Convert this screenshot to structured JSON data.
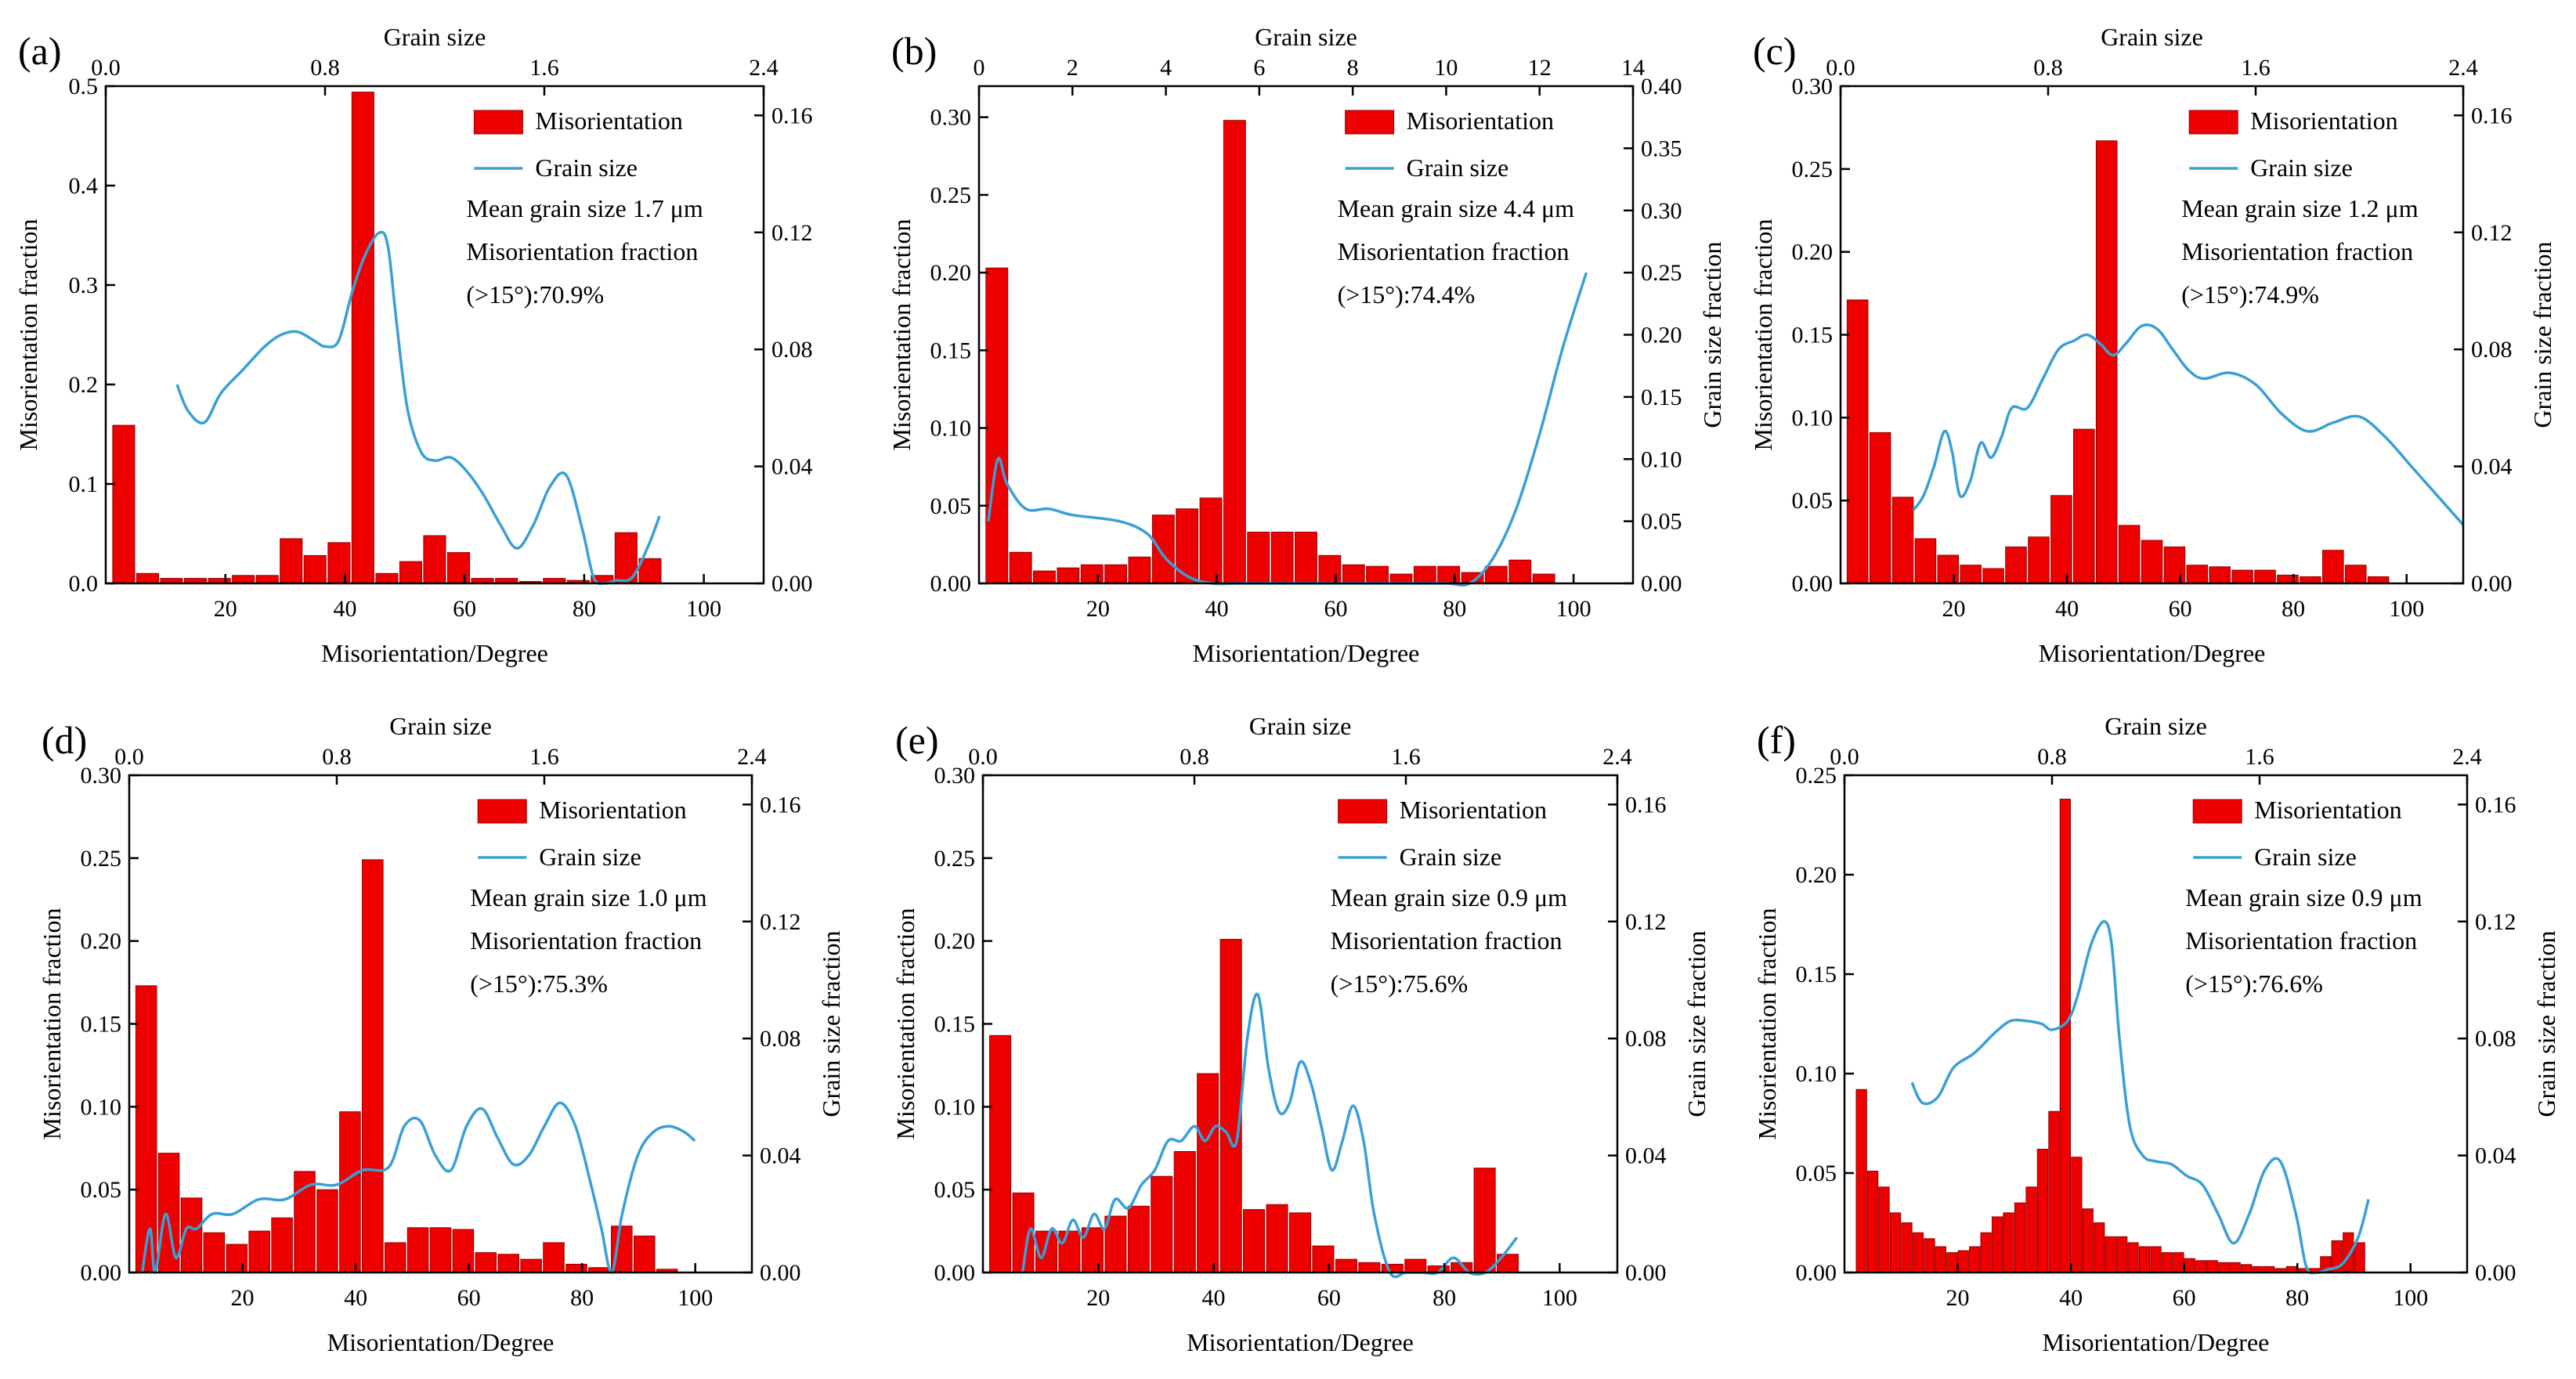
{
  "chart_data": [
    {
      "panel": "(a)",
      "type": "bar",
      "xlabel": "Misorientation/Degree",
      "ylabel_left": "Misorientation fraction",
      "xlabel_top": "Grain size",
      "ylabel_right": "",
      "xlim": [
        0,
        110
      ],
      "ylim_left": [
        0,
        0.5
      ],
      "xlim_top": [
        0,
        2.4
      ],
      "ylim_right": [
        0,
        0.17
      ],
      "xticks": [
        20,
        40,
        60,
        80,
        100
      ],
      "yticks_left": [
        0.0,
        0.1,
        0.2,
        0.3,
        0.4,
        0.5
      ],
      "xticks_top": [
        0.0,
        0.8,
        1.6,
        2.4
      ],
      "yticks_right": [
        0.0,
        0.04,
        0.08,
        0.12,
        0.16
      ],
      "legend": [
        "Misorientation",
        "Grain size"
      ],
      "annotations": [
        "Mean grain size 1.7 μm",
        "Misorientation fraction",
        "(>15°):70.9%"
      ],
      "misorientation": {
        "x": [
          3,
          7,
          11,
          15,
          19,
          23,
          27,
          31,
          35,
          39,
          43,
          47,
          51,
          55,
          59,
          63,
          67,
          71,
          75,
          79,
          83,
          87,
          91
        ],
        "values": [
          0.159,
          0.01,
          0.005,
          0.005,
          0.005,
          0.008,
          0.008,
          0.045,
          0.028,
          0.041,
          0.494,
          0.01,
          0.022,
          0.048,
          0.031,
          0.005,
          0.005,
          0.002,
          0.005,
          0.003,
          0.008,
          0.051,
          0.025
        ]
      },
      "grain_size": {
        "x": [
          0.26,
          0.3,
          0.36,
          0.42,
          0.5,
          0.58,
          0.64,
          0.7,
          0.76,
          0.8,
          0.85,
          0.9,
          0.95,
          1.0,
          1.03,
          1.06,
          1.1,
          1.15,
          1.2,
          1.26,
          1.32,
          1.38,
          1.44,
          1.5,
          1.56,
          1.62,
          1.68,
          1.74,
          1.78,
          1.82,
          1.86,
          1.92,
          1.98,
          2.02
        ],
        "values": [
          0.068,
          0.059,
          0.055,
          0.065,
          0.073,
          0.081,
          0.085,
          0.086,
          0.083,
          0.081,
          0.083,
          0.1,
          0.113,
          0.12,
          0.115,
          0.09,
          0.06,
          0.045,
          0.042,
          0.043,
          0.038,
          0.03,
          0.02,
          0.012,
          0.02,
          0.033,
          0.037,
          0.018,
          0.002,
          0.0,
          0.001,
          0.002,
          0.013,
          0.023
        ]
      }
    },
    {
      "panel": "(b)",
      "type": "bar",
      "xlabel": "Misorientation/Degree",
      "ylabel_left": "Misorientation fraction",
      "xlabel_top": "Grain size",
      "ylabel_right": "Grain size fraction",
      "xlim": [
        0,
        110
      ],
      "ylim_left": [
        0,
        0.32
      ],
      "xlim_top": [
        0,
        14
      ],
      "ylim_right": [
        0,
        0.4
      ],
      "xticks": [
        20,
        40,
        60,
        80,
        100
      ],
      "yticks_left": [
        0.0,
        0.05,
        0.1,
        0.15,
        0.2,
        0.25,
        0.3
      ],
      "xticks_top": [
        0,
        2,
        4,
        6,
        8,
        10,
        12,
        14
      ],
      "yticks_right": [
        0.0,
        0.05,
        0.1,
        0.15,
        0.2,
        0.25,
        0.3,
        0.35,
        0.4
      ],
      "legend": [
        "Misorientation",
        "Grain size"
      ],
      "annotations": [
        "Mean grain size 4.4 μm",
        "Misorientation fraction",
        "(>15°):74.4%"
      ],
      "misorientation": {
        "x": [
          3,
          7,
          11,
          15,
          19,
          23,
          27,
          31,
          35,
          39,
          43,
          47,
          51,
          55,
          59,
          63,
          67,
          71,
          75,
          79,
          83,
          87,
          91,
          95
        ],
        "values": [
          0.203,
          0.02,
          0.008,
          0.01,
          0.012,
          0.012,
          0.017,
          0.044,
          0.048,
          0.055,
          0.298,
          0.033,
          0.033,
          0.033,
          0.018,
          0.012,
          0.011,
          0.006,
          0.011,
          0.011,
          0.007,
          0.011,
          0.015,
          0.006
        ]
      },
      "grain_size": {
        "x": [
          0.2,
          0.4,
          0.6,
          1.0,
          1.5,
          2.0,
          3.0,
          3.6,
          4.0,
          4.5,
          5.0,
          5.5,
          6.0,
          7.0,
          8.0,
          9.0,
          10.0,
          10.5,
          11.0,
          11.5,
          12.0,
          12.5,
          13.0
        ],
        "values": [
          0.05,
          0.1,
          0.08,
          0.06,
          0.06,
          0.055,
          0.05,
          0.04,
          0.02,
          0.005,
          0.0,
          0.0,
          0.0,
          0.0,
          0.0,
          0.0,
          0.0,
          0.0,
          0.02,
          0.06,
          0.12,
          0.19,
          0.25
        ]
      }
    },
    {
      "panel": "(c)",
      "type": "bar",
      "xlabel": "Misorientation/Degree",
      "ylabel_left": "Misorientation fraction",
      "xlabel_top": "Grain size",
      "ylabel_right": "Grain size fraction",
      "xlim": [
        0,
        110
      ],
      "ylim_left": [
        0,
        0.3
      ],
      "xlim_top": [
        0,
        2.4
      ],
      "ylim_right": [
        0,
        0.17
      ],
      "xticks": [
        20,
        40,
        60,
        80,
        100
      ],
      "yticks_left": [
        0.0,
        0.05,
        0.1,
        0.15,
        0.2,
        0.25,
        0.3
      ],
      "xticks_top": [
        0.0,
        0.8,
        1.6,
        2.4
      ],
      "yticks_right": [
        0.0,
        0.04,
        0.08,
        0.12,
        0.16
      ],
      "legend": [
        "Misorientation",
        "Grain size"
      ],
      "annotations": [
        "Mean grain size 1.2 μm",
        "Misorientation fraction",
        "(>15°):74.9%"
      ],
      "misorientation": {
        "x": [
          3,
          7,
          11,
          15,
          19,
          23,
          27,
          31,
          35,
          39,
          43,
          47,
          51,
          55,
          59,
          63,
          67,
          71,
          75,
          79,
          83,
          87,
          91,
          95
        ],
        "values": [
          0.171,
          0.091,
          0.052,
          0.027,
          0.017,
          0.011,
          0.009,
          0.022,
          0.028,
          0.053,
          0.093,
          0.267,
          0.035,
          0.026,
          0.022,
          0.011,
          0.01,
          0.008,
          0.008,
          0.005,
          0.004,
          0.02,
          0.011,
          0.004
        ]
      },
      "grain_size": {
        "x": [
          0.28,
          0.32,
          0.36,
          0.4,
          0.43,
          0.46,
          0.5,
          0.54,
          0.58,
          0.62,
          0.66,
          0.72,
          0.78,
          0.84,
          0.9,
          0.95,
          1.0,
          1.05,
          1.1,
          1.16,
          1.22,
          1.28,
          1.34,
          1.4,
          1.5,
          1.6,
          1.7,
          1.8,
          1.9,
          2.0,
          2.1,
          2.2,
          2.3,
          2.4
        ],
        "values": [
          0.025,
          0.03,
          0.04,
          0.052,
          0.045,
          0.03,
          0.035,
          0.048,
          0.043,
          0.05,
          0.06,
          0.06,
          0.07,
          0.08,
          0.083,
          0.085,
          0.082,
          0.078,
          0.082,
          0.088,
          0.087,
          0.08,
          0.073,
          0.07,
          0.072,
          0.068,
          0.058,
          0.052,
          0.055,
          0.057,
          0.05,
          0.04,
          0.03,
          0.02
        ]
      }
    },
    {
      "panel": "(d)",
      "type": "bar",
      "xlabel": "Misorientation/Degree",
      "ylabel_left": "Misorientation fraction",
      "xlabel_top": "Grain size",
      "ylabel_right": "Grain size fraction",
      "xlim": [
        0,
        110
      ],
      "ylim_left": [
        0,
        0.3
      ],
      "xlim_top": [
        0,
        2.4
      ],
      "ylim_right": [
        0,
        0.17
      ],
      "xticks": [
        20,
        40,
        60,
        80,
        100
      ],
      "yticks_left": [
        0.0,
        0.05,
        0.1,
        0.15,
        0.2,
        0.25,
        0.3
      ],
      "xticks_top": [
        0.0,
        0.8,
        1.6,
        2.4
      ],
      "yticks_right": [
        0.0,
        0.04,
        0.08,
        0.12,
        0.16
      ],
      "legend": [
        "Misorientation",
        "Grain size"
      ],
      "annotations": [
        "Mean grain size 1.0 μm",
        "Misorientation fraction",
        "(>15°):75.3%"
      ],
      "misorientation": {
        "x": [
          3,
          7,
          11,
          15,
          19,
          23,
          27,
          31,
          35,
          39,
          43,
          47,
          51,
          55,
          59,
          63,
          67,
          71,
          75,
          79,
          83,
          87,
          91,
          95
        ],
        "values": [
          0.173,
          0.072,
          0.045,
          0.024,
          0.017,
          0.025,
          0.033,
          0.061,
          0.05,
          0.097,
          0.249,
          0.018,
          0.027,
          0.027,
          0.026,
          0.012,
          0.011,
          0.008,
          0.018,
          0.005,
          0.003,
          0.028,
          0.022,
          0.002
        ]
      },
      "grain_size": {
        "x": [
          0.05,
          0.08,
          0.1,
          0.14,
          0.18,
          0.22,
          0.26,
          0.32,
          0.4,
          0.5,
          0.6,
          0.7,
          0.8,
          0.9,
          1.0,
          1.06,
          1.12,
          1.18,
          1.24,
          1.3,
          1.36,
          1.42,
          1.48,
          1.54,
          1.6,
          1.66,
          1.72,
          1.78,
          1.82,
          1.86,
          1.9,
          1.96,
          2.02,
          2.08,
          2.14,
          2.18
        ],
        "values": [
          0.0,
          0.015,
          0.0,
          0.02,
          0.005,
          0.015,
          0.015,
          0.02,
          0.02,
          0.025,
          0.025,
          0.03,
          0.03,
          0.035,
          0.036,
          0.05,
          0.052,
          0.04,
          0.035,
          0.05,
          0.056,
          0.046,
          0.037,
          0.04,
          0.05,
          0.058,
          0.05,
          0.03,
          0.015,
          0.0,
          0.02,
          0.04,
          0.048,
          0.05,
          0.048,
          0.045
        ]
      }
    },
    {
      "panel": "(e)",
      "type": "bar",
      "xlabel": "Misorientation/Degree",
      "ylabel_left": "Misorientation fraction",
      "xlabel_top": "Grain size",
      "ylabel_right": "Grain size fraction",
      "xlim": [
        0,
        110
      ],
      "ylim_left": [
        0,
        0.3
      ],
      "xlim_top": [
        0,
        2.4
      ],
      "ylim_right": [
        0,
        0.17
      ],
      "xticks": [
        20,
        40,
        60,
        80,
        100
      ],
      "yticks_left": [
        0.0,
        0.05,
        0.1,
        0.15,
        0.2,
        0.25,
        0.3
      ],
      "xticks_top": [
        0.0,
        0.8,
        1.6,
        2.4
      ],
      "yticks_right": [
        0.0,
        0.04,
        0.08,
        0.12,
        0.16
      ],
      "legend": [
        "Misorientation",
        "Grain size"
      ],
      "annotations": [
        "Mean grain size 0.9 μm",
        "Misorientation fraction",
        "(>15°):75.6%"
      ],
      "misorientation": {
        "x": [
          3,
          7,
          11,
          15,
          19,
          23,
          27,
          31,
          35,
          39,
          43,
          47,
          51,
          55,
          59,
          63,
          67,
          71,
          75,
          79,
          83,
          87,
          91
        ],
        "values": [
          0.143,
          0.048,
          0.025,
          0.025,
          0.027,
          0.034,
          0.04,
          0.058,
          0.073,
          0.12,
          0.201,
          0.038,
          0.041,
          0.036,
          0.016,
          0.008,
          0.006,
          0.005,
          0.008,
          0.004,
          0.006,
          0.063,
          0.011
        ]
      },
      "grain_size": {
        "x": [
          0.15,
          0.18,
          0.22,
          0.26,
          0.3,
          0.34,
          0.38,
          0.42,
          0.46,
          0.5,
          0.55,
          0.6,
          0.65,
          0.7,
          0.75,
          0.8,
          0.84,
          0.88,
          0.92,
          0.96,
          1.0,
          1.04,
          1.08,
          1.12,
          1.16,
          1.2,
          1.24,
          1.28,
          1.32,
          1.36,
          1.4,
          1.44,
          1.48,
          1.54,
          1.6,
          1.66,
          1.72,
          1.78,
          1.84,
          1.9,
          1.96,
          2.02
        ],
        "values": [
          0.0,
          0.015,
          0.005,
          0.015,
          0.01,
          0.018,
          0.012,
          0.02,
          0.015,
          0.025,
          0.022,
          0.03,
          0.035,
          0.045,
          0.045,
          0.05,
          0.045,
          0.05,
          0.048,
          0.045,
          0.08,
          0.095,
          0.07,
          0.055,
          0.058,
          0.072,
          0.065,
          0.05,
          0.035,
          0.045,
          0.057,
          0.045,
          0.02,
          0.0,
          0.0,
          0.0,
          0.0,
          0.005,
          0.0,
          0.0,
          0.005,
          0.012
        ]
      }
    },
    {
      "panel": "(f)",
      "type": "bar",
      "xlabel": "Misorientation/Degree",
      "ylabel_left": "Misorientation fraction",
      "xlabel_top": "Grain size",
      "ylabel_right": "Grain size fraction",
      "xlim": [
        0,
        110
      ],
      "ylim_left": [
        0,
        0.25
      ],
      "xlim_top": [
        0,
        2.4
      ],
      "ylim_right": [
        0,
        0.17
      ],
      "xticks": [
        20,
        40,
        60,
        80,
        100
      ],
      "yticks_left": [
        0.0,
        0.05,
        0.1,
        0.15,
        0.2,
        0.25
      ],
      "xticks_top": [
        0.0,
        0.8,
        1.6,
        2.4
      ],
      "yticks_right": [
        0.0,
        0.04,
        0.08,
        0.12,
        0.16
      ],
      "legend": [
        "Misorientation",
        "Grain size"
      ],
      "annotations": [
        "Mean grain size 0.9 μm",
        "Misorientation fraction",
        "(>15°):76.6%"
      ],
      "misorientation": {
        "x": [
          3,
          5,
          7,
          9,
          11,
          13,
          15,
          17,
          19,
          21,
          23,
          25,
          27,
          29,
          31,
          33,
          35,
          37,
          39,
          41,
          43,
          45,
          47,
          49,
          51,
          53,
          55,
          57,
          59,
          61,
          63,
          65,
          67,
          69,
          71,
          73,
          75,
          77,
          79,
          81,
          83,
          85,
          87,
          89,
          91
        ],
        "values": [
          0.092,
          0.051,
          0.043,
          0.03,
          0.025,
          0.02,
          0.017,
          0.013,
          0.01,
          0.011,
          0.013,
          0.02,
          0.028,
          0.03,
          0.035,
          0.043,
          0.062,
          0.081,
          0.238,
          0.058,
          0.032,
          0.025,
          0.018,
          0.018,
          0.015,
          0.013,
          0.013,
          0.01,
          0.01,
          0.007,
          0.006,
          0.006,
          0.005,
          0.005,
          0.004,
          0.003,
          0.003,
          0.002,
          0.003,
          0.002,
          0.002,
          0.008,
          0.016,
          0.02,
          0.015
        ]
      },
      "grain_size": {
        "x": [
          0.26,
          0.3,
          0.36,
          0.42,
          0.5,
          0.58,
          0.64,
          0.7,
          0.76,
          0.8,
          0.86,
          0.9,
          0.95,
          1.0,
          1.03,
          1.06,
          1.1,
          1.15,
          1.2,
          1.26,
          1.32,
          1.38,
          1.44,
          1.5,
          1.56,
          1.62,
          1.68,
          1.74,
          1.78,
          1.82,
          1.86,
          1.92,
          1.98,
          2.02
        ],
        "values": [
          0.065,
          0.058,
          0.06,
          0.07,
          0.075,
          0.082,
          0.086,
          0.086,
          0.085,
          0.083,
          0.086,
          0.095,
          0.112,
          0.12,
          0.112,
          0.08,
          0.05,
          0.04,
          0.038,
          0.037,
          0.033,
          0.03,
          0.02,
          0.01,
          0.02,
          0.035,
          0.038,
          0.02,
          0.002,
          0.0,
          0.001,
          0.003,
          0.012,
          0.025
        ]
      }
    }
  ],
  "colors": {
    "bar": "#ee0000",
    "bar_edge": "#990000",
    "line": "#3a9fd6",
    "axis": "#000000"
  }
}
